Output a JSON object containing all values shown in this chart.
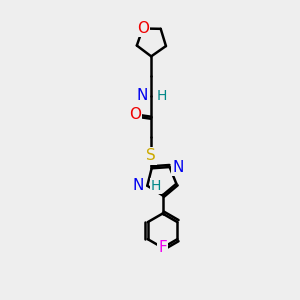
{
  "bg_color": "#eeeeee",
  "atom_colors": {
    "C": "#000000",
    "N": "#0000ee",
    "O": "#ee0000",
    "S": "#ccaa00",
    "F": "#ee00ee",
    "H": "#008888"
  },
  "bond_color": "#000000",
  "bond_width": 1.8,
  "font_size": 10,
  "fig_width": 3.0,
  "fig_height": 3.0,
  "xlim": [
    -0.5,
    3.5
  ],
  "ylim": [
    -0.5,
    9.5
  ]
}
